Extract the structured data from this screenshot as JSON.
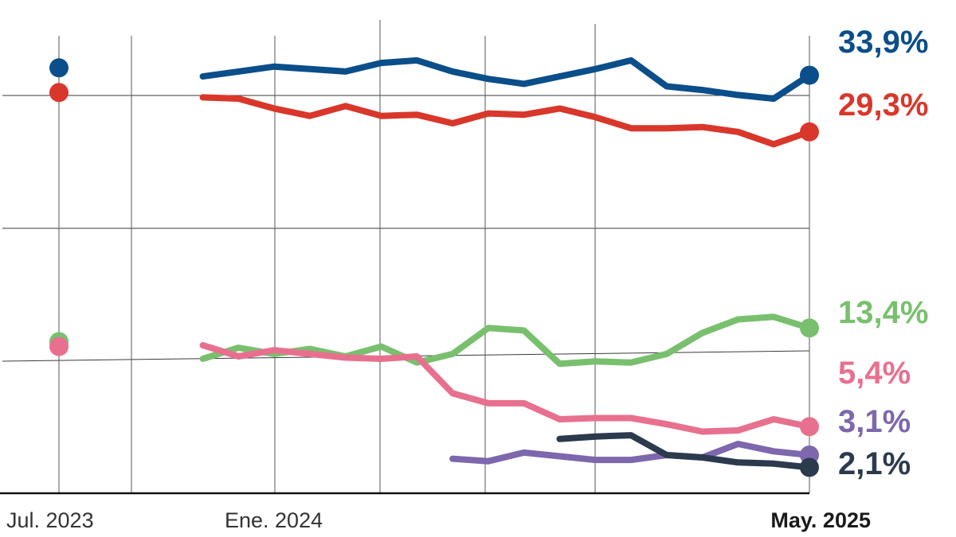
{
  "chart_data": {
    "type": "line",
    "x_tick_labels": [
      {
        "label": "Jul. 2023",
        "bold": false
      },
      {
        "label": "Ene. 2024",
        "bold": false
      },
      {
        "label": "May. 2025",
        "bold": true
      }
    ],
    "x_periods": [
      "Jul. 2023",
      "P1",
      "P2",
      "Ene. 2024",
      "P4",
      "P5",
      "P6",
      "P7",
      "P8",
      "P9",
      "P10",
      "P11",
      "P12",
      "P13",
      "P14",
      "P15",
      "P16",
      "P17",
      "P18",
      "P19",
      "May. 2025"
    ],
    "ylim": [
      0,
      40
    ],
    "grid": true,
    "series": [
      {
        "key": "blue",
        "color": "#0a4e8a",
        "end_label": "33,9%",
        "values": [
          34.5,
          null,
          null,
          33.8,
          34.2,
          34.6,
          34.4,
          34.2,
          34.9,
          35.1,
          34.2,
          33.6,
          33.2,
          33.8,
          34.4,
          35.1,
          33.0,
          32.7,
          32.3,
          32.0,
          33.9
        ]
      },
      {
        "key": "red",
        "color": "#d9372b",
        "end_label": "29,3%",
        "values": [
          32.5,
          null,
          null,
          32.1,
          32.0,
          31.2,
          30.6,
          31.4,
          30.6,
          30.7,
          30.0,
          30.8,
          30.7,
          31.2,
          30.5,
          29.6,
          29.6,
          29.7,
          29.3,
          28.3,
          29.3
        ]
      },
      {
        "key": "green",
        "color": "#79c06e",
        "end_label": "13,4%",
        "values": [
          12.3,
          null,
          null,
          10.9,
          11.8,
          11.3,
          11.7,
          11.1,
          11.9,
          10.6,
          11.3,
          13.4,
          13.2,
          10.5,
          10.7,
          10.6,
          11.3,
          13.0,
          14.1,
          14.3,
          13.4
        ]
      },
      {
        "key": "pink",
        "color": "#e8708f",
        "end_label": "5,4%",
        "values": [
          11.9,
          null,
          null,
          12.0,
          11.1,
          11.6,
          11.3,
          11.0,
          10.9,
          11.1,
          8.1,
          7.3,
          7.3,
          6.0,
          6.1,
          6.1,
          5.6,
          5.0,
          5.1,
          6.0,
          5.4
        ]
      },
      {
        "key": "purple",
        "color": "#7d67ad",
        "end_label": "3,1%",
        "values": [
          null,
          null,
          null,
          null,
          null,
          null,
          null,
          null,
          null,
          null,
          2.8,
          2.6,
          3.3,
          3.0,
          2.7,
          2.7,
          3.1,
          2.9,
          4.0,
          3.4,
          3.1
        ]
      },
      {
        "key": "navy",
        "color": "#2c3a4e",
        "end_label": "2,1%",
        "values": [
          null,
          null,
          null,
          null,
          null,
          null,
          null,
          null,
          null,
          null,
          null,
          null,
          null,
          4.4,
          4.6,
          4.7,
          3.1,
          2.9,
          2.5,
          2.4,
          2.1
        ]
      }
    ]
  }
}
